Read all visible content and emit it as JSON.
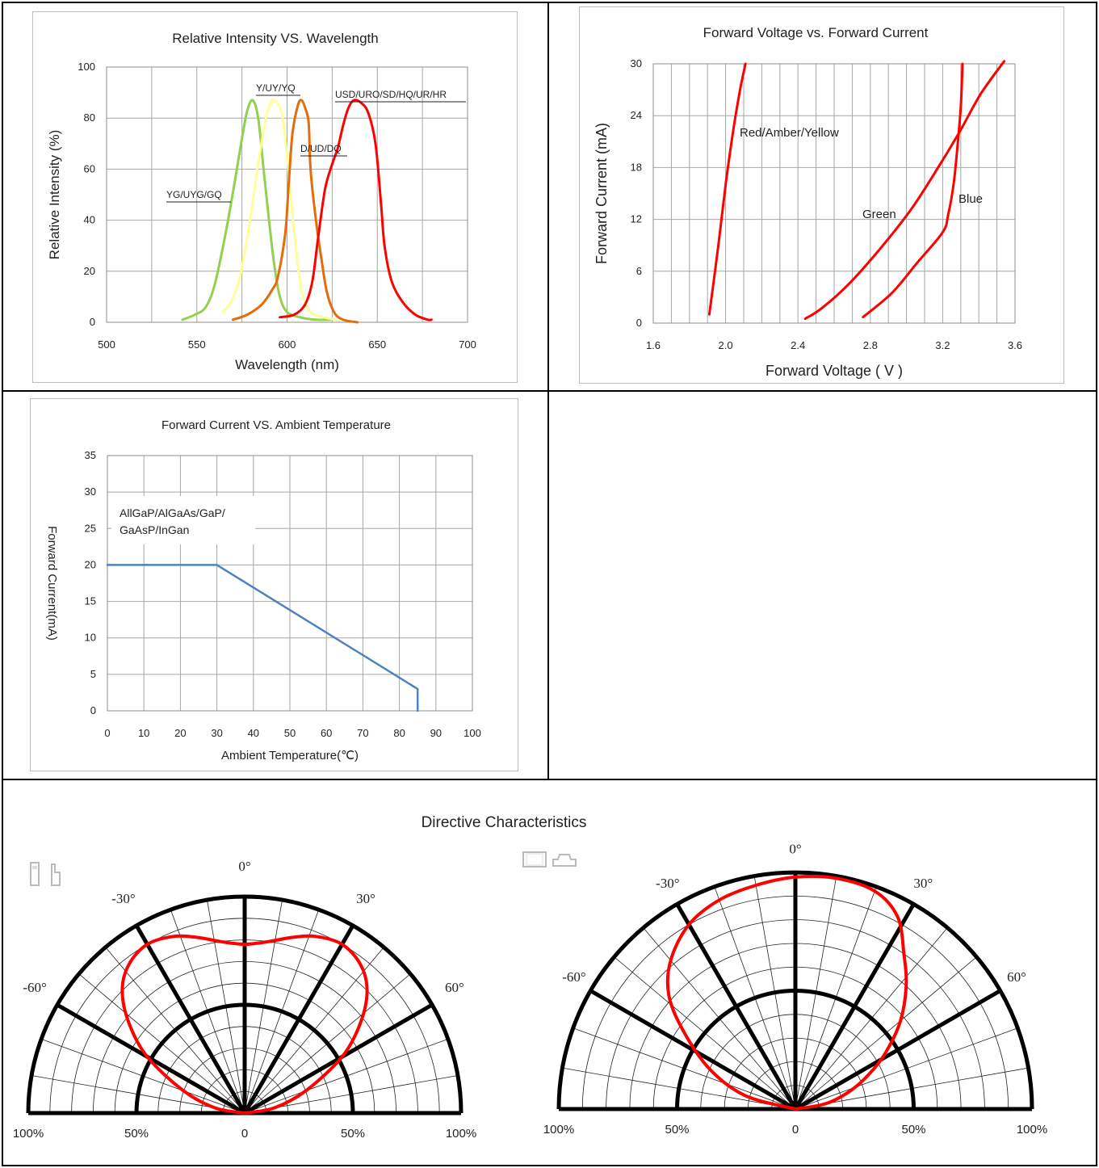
{
  "chart_data": [
    {
      "id": "intensity",
      "type": "line",
      "title": "Relative Intensity VS. Wavelength",
      "xlabel": "Wavelength (nm)",
      "ylabel": "Relative Intensity (%)",
      "xlim": [
        500,
        700
      ],
      "ylim": [
        0,
        100
      ],
      "x_ticks": [
        "500",
        "550",
        "600",
        "650",
        "700"
      ],
      "y_ticks": [
        "0",
        "20",
        "40",
        "60",
        "80",
        "100"
      ],
      "grid": true,
      "series": [
        {
          "label": "YG/UYG/GQ",
          "color": "#92d050",
          "points": [
            [
              542,
              1
            ],
            [
              549,
              3
            ],
            [
              555,
              6
            ],
            [
              560,
              15
            ],
            [
              566,
              35
            ],
            [
              571,
              55
            ],
            [
              575,
              72
            ],
            [
              578,
              83
            ],
            [
              581,
              87
            ],
            [
              584,
              80
            ],
            [
              587,
              60
            ],
            [
              590,
              40
            ],
            [
              593,
              22
            ],
            [
              596,
              10
            ],
            [
              600,
              4
            ],
            [
              607,
              2
            ],
            [
              616,
              1
            ],
            [
              625,
              1
            ]
          ]
        },
        {
          "label": "Y/UY/YQ",
          "color": "#ffff99",
          "points": [
            [
              564,
              4
            ],
            [
              569,
              8
            ],
            [
              574,
              18
            ],
            [
              579,
              38
            ],
            [
              584,
              62
            ],
            [
              588,
              79
            ],
            [
              591,
              86
            ],
            [
              593,
              87
            ],
            [
              597,
              82
            ],
            [
              600,
              65
            ],
            [
              603,
              42
            ],
            [
              606,
              22
            ],
            [
              609,
              10
            ],
            [
              613,
              4
            ],
            [
              620,
              2
            ],
            [
              627,
              1
            ]
          ]
        },
        {
          "label": "D/UD/DQ",
          "color": "#e46c0a",
          "points": [
            [
              570,
              1
            ],
            [
              578,
              3
            ],
            [
              586,
              7
            ],
            [
              592,
              13
            ],
            [
              595,
              18
            ],
            [
              599,
              35
            ],
            [
              601,
              55
            ],
            [
              603,
              74
            ],
            [
              606,
              85
            ],
            [
              608,
              87
            ],
            [
              610,
              84
            ],
            [
              612,
              78
            ],
            [
              613,
              60
            ],
            [
              616,
              40
            ],
            [
              619,
              25
            ],
            [
              622,
              12
            ],
            [
              626,
              4
            ],
            [
              631,
              1
            ],
            [
              639,
              0
            ]
          ]
        },
        {
          "label": "USD/URO/SD/HQ/UR/HR",
          "color": "#ff0000",
          "points": [
            [
              596,
              2
            ],
            [
              604,
              3
            ],
            [
              610,
              7
            ],
            [
              614,
              16
            ],
            [
              617,
              32
            ],
            [
              621,
              52
            ],
            [
              625,
              62
            ],
            [
              628,
              68
            ],
            [
              631,
              77
            ],
            [
              634,
              84
            ],
            [
              637,
              87
            ],
            [
              641,
              86
            ],
            [
              645,
              82
            ],
            [
              649,
              70
            ],
            [
              652,
              47
            ],
            [
              654,
              30
            ],
            [
              658,
              16
            ],
            [
              664,
              8
            ],
            [
              671,
              3
            ],
            [
              678,
              1
            ],
            [
              680,
              1
            ]
          ]
        }
      ]
    },
    {
      "id": "forward-voltage",
      "type": "line",
      "title": "Forward Voltage vs. Forward Current",
      "xlabel": "Forward Voltage ( V )",
      "ylabel": "Forward Current (mA)",
      "xlim": [
        1.6,
        3.6
      ],
      "ylim": [
        0,
        30
      ],
      "x_ticks": [
        "1.6",
        "2.0",
        "2.4",
        "2.8",
        "3.2",
        "3.6"
      ],
      "y_ticks": [
        "0",
        "6",
        "12",
        "18",
        "24",
        "30"
      ],
      "grid": true,
      "series": [
        {
          "label": "Red/Amber/Yellow",
          "color": "#ff0000",
          "points": [
            [
              1.91,
              1
            ],
            [
              1.96,
              9
            ],
            [
              2.0,
              16
            ],
            [
              2.04,
              22
            ],
            [
              2.08,
              27
            ],
            [
              2.11,
              30
            ]
          ]
        },
        {
          "label": "Green",
          "color": "#ff0000",
          "points": [
            [
              2.44,
              0.5
            ],
            [
              2.53,
              1.7
            ],
            [
              2.68,
              4.5
            ],
            [
              2.85,
              8.5
            ],
            [
              3.02,
              13.0
            ],
            [
              3.16,
              17.5
            ],
            [
              3.29,
              22.0
            ],
            [
              3.41,
              26.5
            ],
            [
              3.54,
              30.3
            ]
          ]
        },
        {
          "label": "Blue",
          "color": "#ff0000",
          "points": [
            [
              2.76,
              0.7
            ],
            [
              2.92,
              3.5
            ],
            [
              3.06,
              7.0
            ],
            [
              3.2,
              10.5
            ],
            [
              3.23,
              12.5
            ],
            [
              3.26,
              16.0
            ],
            [
              3.28,
              20.0
            ],
            [
              3.3,
              25.0
            ],
            [
              3.31,
              30.0
            ]
          ]
        }
      ]
    },
    {
      "id": "derating",
      "type": "line",
      "title": "Forward Current VS. Ambient Temperature",
      "xlabel": "Ambient Temperature(℃)",
      "ylabel": "Forward  Current(mA)",
      "xlim": [
        0,
        100
      ],
      "ylim": [
        0,
        35
      ],
      "x_ticks": [
        "0",
        "10",
        "20",
        "30",
        "40",
        "50",
        "60",
        "70",
        "80",
        "90",
        "100"
      ],
      "y_ticks": [
        "0",
        "5",
        "10",
        "15",
        "20",
        "25",
        "30",
        "35"
      ],
      "grid": true,
      "annotation": [
        "AllGaP/AlGaAs/GaP/",
        "GaAsP/InGan"
      ],
      "series": [
        {
          "label": "",
          "color": "#4f81bd",
          "points": [
            [
              0,
              20
            ],
            [
              30,
              20
            ],
            [
              85,
              3
            ],
            [
              85,
              0
            ]
          ]
        }
      ]
    },
    {
      "id": "polar-left",
      "type": "polar",
      "angle_labels": [
        "-60°",
        "-30°",
        "0°",
        "30°",
        "60°"
      ],
      "radius_labels": [
        "100%",
        "50%",
        "0",
        "50%",
        "100%"
      ],
      "series": [
        {
          "label": "",
          "color": "#ff0000",
          "points_deg_pct": [
            [
              -90,
              0
            ],
            [
              -80,
              14
            ],
            [
              -70,
              30
            ],
            [
              -60,
              52
            ],
            [
              -52,
              68
            ],
            [
              -45,
              80
            ],
            [
              -38,
              87
            ],
            [
              -30,
              90
            ],
            [
              -22,
              88
            ],
            [
              -15,
              84
            ],
            [
              -8,
              80
            ],
            [
              0,
              78
            ],
            [
              8,
              80
            ],
            [
              15,
              84
            ],
            [
              22,
              88
            ],
            [
              30,
              90
            ],
            [
              38,
              87
            ],
            [
              45,
              80
            ],
            [
              52,
              68
            ],
            [
              60,
              52
            ],
            [
              70,
              30
            ],
            [
              80,
              14
            ],
            [
              90,
              0
            ]
          ]
        }
      ]
    },
    {
      "id": "polar-right",
      "type": "polar",
      "angle_labels": [
        "-60°",
        "-30°",
        "0°",
        "30°",
        "60°"
      ],
      "radius_labels": [
        "100%",
        "50%",
        "0",
        "50%",
        "100%"
      ],
      "series": [
        {
          "label": "",
          "color": "#ff0000",
          "points_deg_pct": [
            [
              -90,
              0
            ],
            [
              -75,
              22
            ],
            [
              -65,
              40
            ],
            [
              -55,
              58
            ],
            [
              -48,
              72
            ],
            [
              -40,
              82
            ],
            [
              -30,
              90
            ],
            [
              -20,
              94
            ],
            [
              -10,
              96
            ],
            [
              0,
              98
            ],
            [
              10,
              99
            ],
            [
              20,
              98
            ],
            [
              28,
              92
            ],
            [
              35,
              80
            ],
            [
              42,
              70
            ],
            [
              50,
              58
            ],
            [
              58,
              45
            ],
            [
              65,
              34
            ],
            [
              72,
              24
            ],
            [
              80,
              13
            ],
            [
              90,
              0
            ]
          ]
        }
      ]
    }
  ],
  "directive": {
    "title": "Directive Characteristics"
  }
}
